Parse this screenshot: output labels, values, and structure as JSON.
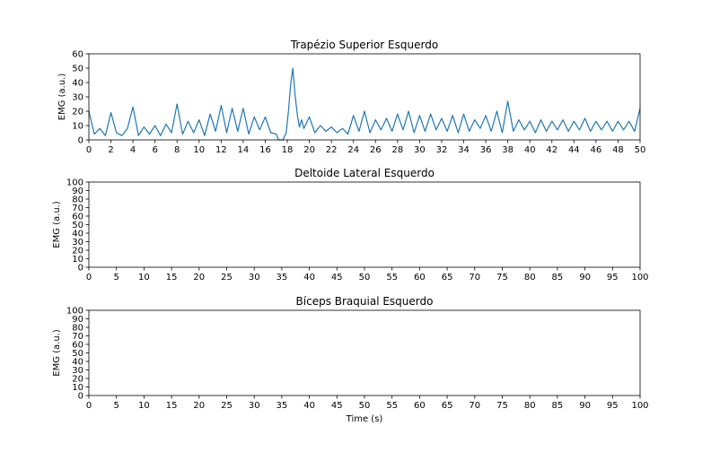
{
  "chart_data": [
    {
      "type": "line",
      "title": "Trapézio Superior Esquerdo",
      "xlabel": "",
      "ylabel": "EMG (a.u.)",
      "xlim": [
        0,
        50
      ],
      "ylim": [
        0,
        60
      ],
      "xticks": [
        "0",
        "2",
        "4",
        "6",
        "8",
        "10",
        "12",
        "14",
        "16",
        "18",
        "20",
        "22",
        "24",
        "26",
        "28",
        "30",
        "32",
        "34",
        "36",
        "38",
        "40",
        "42",
        "44",
        "46",
        "48",
        "50"
      ],
      "yticks": [
        "0",
        "10",
        "20",
        "30",
        "40",
        "50",
        "60"
      ],
      "grid": false,
      "color": "#1f77b4",
      "series": [
        {
          "x": [
            0,
            0.5,
            1,
            1.5,
            2,
            2.5,
            3,
            3.5,
            4,
            4.5,
            5,
            5.5,
            6,
            6.5,
            7,
            7.5,
            8,
            8.5,
            9,
            9.5,
            10,
            10.5,
            11,
            11.5,
            12,
            12.5,
            13,
            13.5,
            14,
            14.5,
            15,
            15.5,
            16,
            16.5,
            17,
            17.2,
            17.6,
            17.9,
            18.1,
            18.3,
            18.5,
            18.7,
            18.9,
            19.1,
            19.3,
            19.5,
            20,
            20.5,
            21,
            21.5,
            22,
            22.5,
            23,
            23.5,
            24,
            24.5,
            25,
            25.5,
            26,
            26.5,
            27,
            27.5,
            28,
            28.5,
            29,
            29.5,
            30,
            30.5,
            31,
            31.5,
            32,
            32.5,
            33,
            33.5,
            34,
            34.5,
            35,
            35.5,
            36,
            36.5,
            37,
            37.5,
            38,
            38.5,
            39,
            39.5,
            40,
            40.5,
            41,
            41.5,
            42,
            42.5,
            43,
            43.5,
            44,
            44.5,
            45,
            45.5,
            46,
            46.5,
            47,
            47.5,
            48,
            48.5,
            49,
            49.5,
            50
          ],
          "values": [
            20,
            4,
            8,
            3,
            19,
            5,
            3,
            8,
            23,
            3,
            9,
            4,
            10,
            3,
            11,
            5,
            25,
            4,
            13,
            5,
            14,
            3,
            18,
            6,
            24,
            5,
            22,
            6,
            22,
            4,
            16,
            7,
            16,
            5,
            4,
            0,
            0,
            5,
            20,
            38,
            50,
            32,
            18,
            9,
            14,
            8,
            16,
            5,
            10,
            6,
            9,
            5,
            8,
            4,
            17,
            6,
            20,
            5,
            14,
            7,
            15,
            6,
            18,
            7,
            20,
            5,
            17,
            6,
            18,
            7,
            15,
            6,
            17,
            5,
            18,
            6,
            14,
            8,
            17,
            6,
            20,
            5,
            27,
            6,
            14,
            7,
            13,
            5,
            14,
            6,
            13,
            7,
            14,
            6,
            13,
            7,
            15,
            6,
            13,
            7,
            13,
            6,
            13,
            7,
            13,
            6,
            22
          ]
        }
      ]
    },
    {
      "type": "line",
      "title": "Deltoide Lateral Esquerdo",
      "xlabel": "",
      "ylabel": "EMG (a.u.)",
      "xlim": [
        0,
        100
      ],
      "ylim": [
        0,
        100
      ],
      "xticks": [
        "0",
        "5",
        "10",
        "15",
        "20",
        "25",
        "30",
        "35",
        "40",
        "45",
        "50",
        "55",
        "60",
        "65",
        "70",
        "75",
        "80",
        "85",
        "90",
        "95",
        "100"
      ],
      "yticks": [
        "0",
        "10",
        "20",
        "30",
        "40",
        "50",
        "60",
        "70",
        "80",
        "90",
        "100"
      ],
      "grid": false,
      "series": []
    },
    {
      "type": "line",
      "title": "Bíceps Braquial Esquerdo",
      "xlabel": "Time (s)",
      "ylabel": "EMG (a.u.)",
      "xlim": [
        0,
        100
      ],
      "ylim": [
        0,
        100
      ],
      "xticks": [
        "0",
        "5",
        "10",
        "15",
        "20",
        "25",
        "30",
        "35",
        "40",
        "45",
        "50",
        "55",
        "60",
        "65",
        "70",
        "75",
        "80",
        "85",
        "90",
        "95",
        "100"
      ],
      "yticks": [
        "0",
        "10",
        "20",
        "30",
        "40",
        "50",
        "60",
        "70",
        "80",
        "90",
        "100"
      ],
      "grid": false,
      "series": []
    }
  ]
}
